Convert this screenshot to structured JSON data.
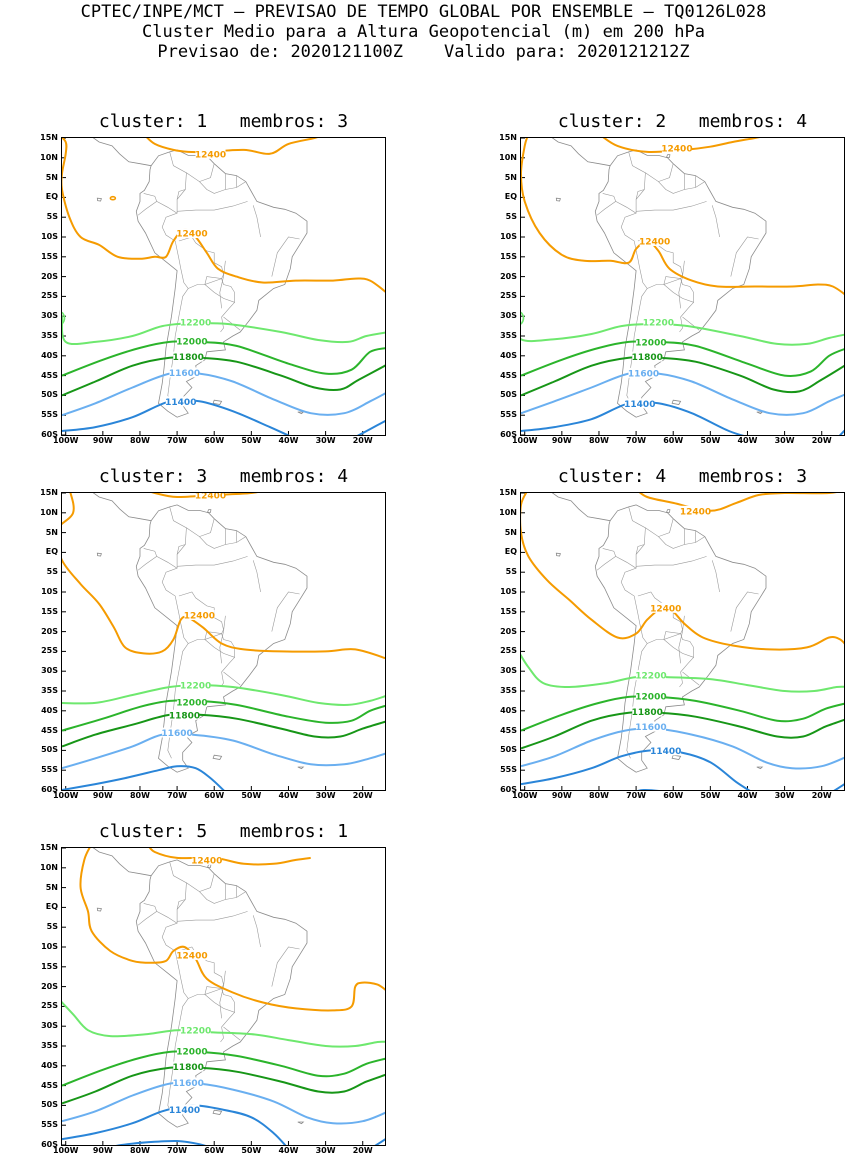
{
  "header": {
    "line1": "CPTEC/INPE/MCT — PREVISAO DE TEMPO GLOBAL POR ENSEMBLE — TQ0126L028",
    "line2": "Cluster Medio para a Altura Geopotencial (m) em 200 hPa",
    "line3": "Previsao de: 2020121100Z    Valido para: 2020121212Z"
  },
  "axes": {
    "lat_labels": [
      "15N",
      "10N",
      "5N",
      "EQ",
      "5S",
      "10S",
      "15S",
      "20S",
      "25S",
      "30S",
      "35S",
      "40S",
      "45S",
      "50S",
      "55S",
      "60S"
    ],
    "lon_labels": [
      "100W",
      "90W",
      "80W",
      "70W",
      "60W",
      "50W",
      "40W",
      "30W",
      "20W"
    ]
  },
  "contour_colors": {
    "12400": "#f59b00",
    "12200": "#6ee86e",
    "12000": "#2bb42b",
    "11800": "#179617",
    "11600": "#6aaff0",
    "11400": "#2a85d8"
  },
  "panels": [
    {
      "title": "cluster: 1   membros: 3"
    },
    {
      "title": "cluster: 2   membros: 4"
    },
    {
      "title": "cluster: 3   membros: 4"
    },
    {
      "title": "cluster: 4   membros: 3"
    },
    {
      "title": "cluster: 5   membros: 1"
    }
  ]
}
